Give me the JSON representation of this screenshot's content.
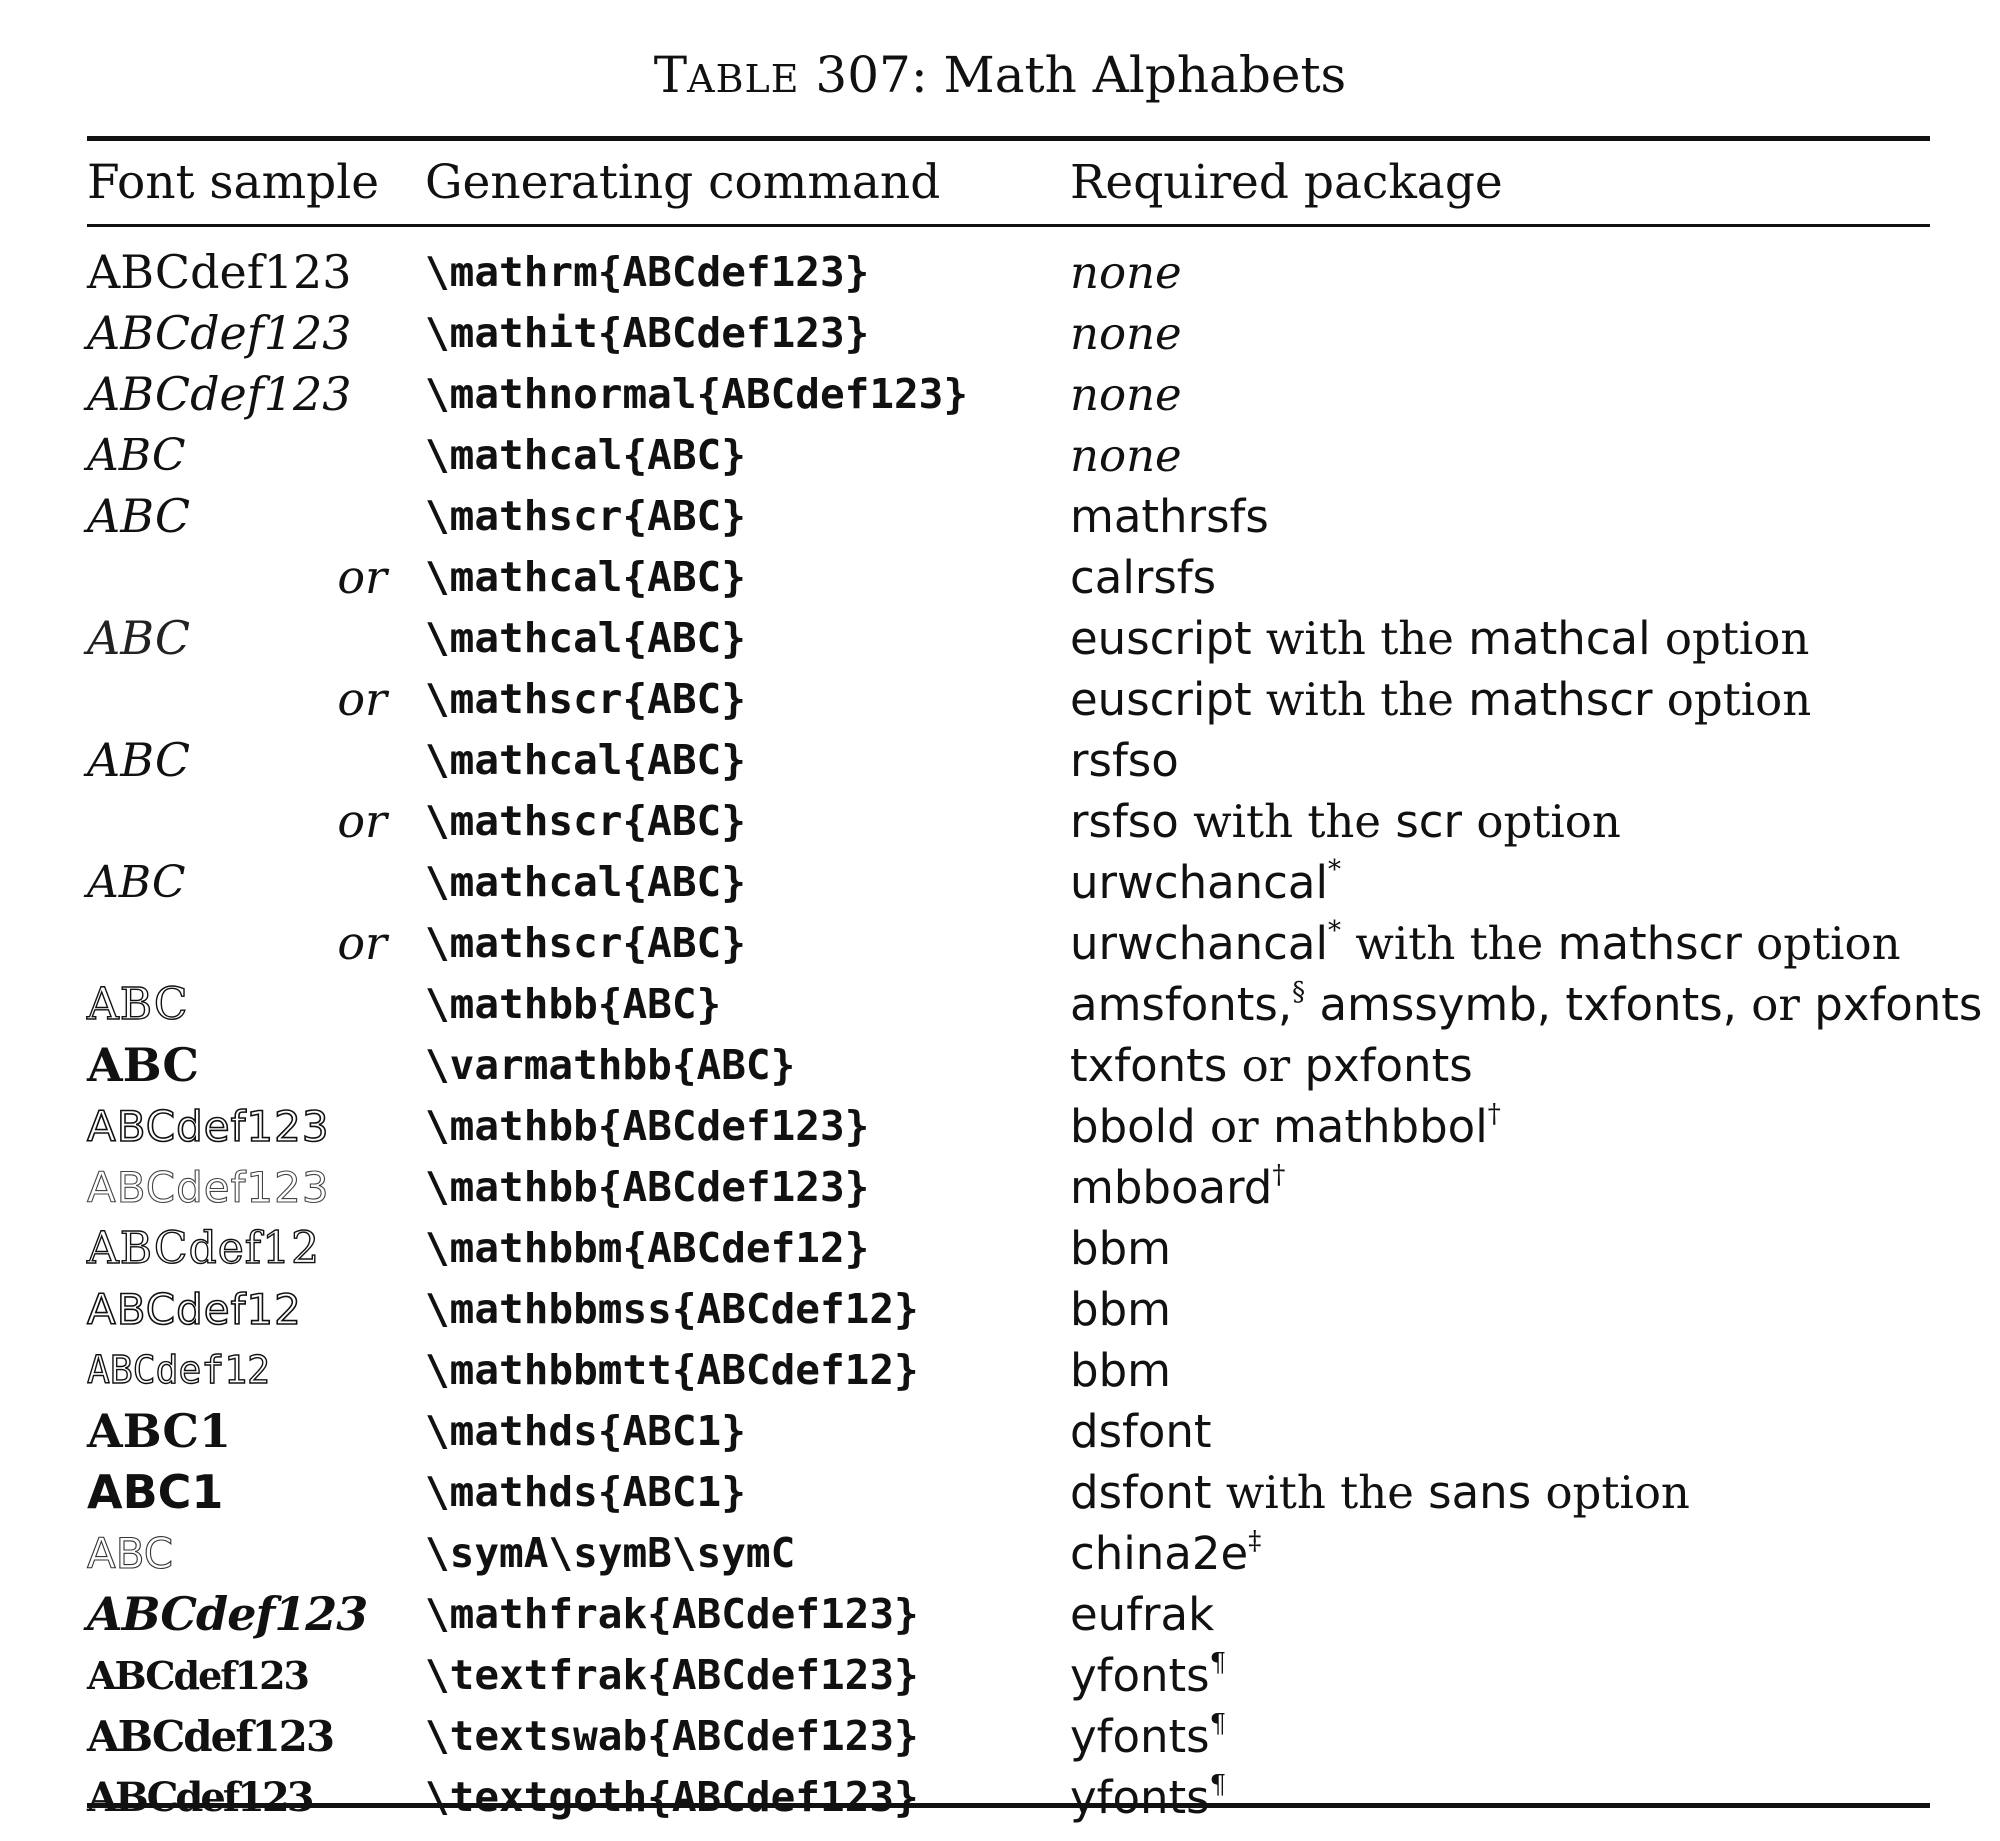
{
  "caption": {
    "prefix_big": "T",
    "prefix_small": "ABLE",
    "rest": " 307: Math Alphabets"
  },
  "headers": {
    "font_sample": "Font sample",
    "generating_command": "Generating command",
    "required_package": "Required package"
  },
  "rows": [
    {
      "sample": "ABCdef123",
      "command": "\\mathrm{ABCdef123}",
      "pkg": [
        {
          "t": "none",
          "s": "it"
        }
      ]
    },
    {
      "sample": "ABCdef123",
      "command": "\\mathit{ABCdef123}",
      "pkg": [
        {
          "t": "none",
          "s": "it"
        }
      ]
    },
    {
      "sample": "ABCdef123",
      "command": "\\mathnormal{ABCdef123}",
      "pkg": [
        {
          "t": "none",
          "s": "it"
        }
      ]
    },
    {
      "sample": "ABC",
      "command": "\\mathcal{ABC}",
      "pkg": [
        {
          "t": "none",
          "s": "it"
        }
      ]
    },
    {
      "sample": "ABC",
      "command": "\\mathscr{ABC}",
      "pkg": [
        {
          "t": "mathrsfs",
          "s": "sf"
        }
      ]
    },
    {
      "sample": "or",
      "command": "\\mathcal{ABC}",
      "pkg": [
        {
          "t": "calrsfs",
          "s": "sf"
        }
      ]
    },
    {
      "sample": "ABC",
      "command": "\\mathcal{ABC}",
      "pkg": [
        {
          "t": "euscript",
          "s": "sf"
        },
        {
          "t": " with the ",
          "s": "rm"
        },
        {
          "t": "mathcal",
          "s": "sf"
        },
        {
          "t": " option",
          "s": "rm"
        }
      ]
    },
    {
      "sample": "or",
      "command": "\\mathscr{ABC}",
      "pkg": [
        {
          "t": "euscript",
          "s": "sf"
        },
        {
          "t": " with the ",
          "s": "rm"
        },
        {
          "t": "mathscr",
          "s": "sf"
        },
        {
          "t": " option",
          "s": "rm"
        }
      ]
    },
    {
      "sample": "ABC",
      "command": "\\mathcal{ABC}",
      "pkg": [
        {
          "t": "rsfso",
          "s": "sf"
        }
      ]
    },
    {
      "sample": "or",
      "command": "\\mathscr{ABC}",
      "pkg": [
        {
          "t": "rsfso",
          "s": "sf"
        },
        {
          "t": " with the ",
          "s": "rm"
        },
        {
          "t": "scr",
          "s": "sf"
        },
        {
          "t": " option",
          "s": "rm"
        }
      ]
    },
    {
      "sample": "ABC",
      "command": "\\mathcal{ABC}",
      "pkg": [
        {
          "t": "urwchancal",
          "s": "sf"
        },
        {
          "t": "*",
          "s": "sup"
        }
      ]
    },
    {
      "sample": "or",
      "command": "\\mathscr{ABC}",
      "pkg": [
        {
          "t": "urwchancal",
          "s": "sf"
        },
        {
          "t": "*",
          "s": "sup"
        },
        {
          "t": " with the ",
          "s": "rm"
        },
        {
          "t": "mathscr",
          "s": "sf"
        },
        {
          "t": " option",
          "s": "rm"
        }
      ]
    },
    {
      "sample": "ABC",
      "command": "\\mathbb{ABC}",
      "pkg": [
        {
          "t": "amsfonts,",
          "s": "sf"
        },
        {
          "t": "§",
          "s": "sup"
        },
        {
          "t": " amssymb, txfonts, ",
          "s": "sf"
        },
        {
          "t": "or ",
          "s": "rm"
        },
        {
          "t": "pxfonts",
          "s": "sf"
        }
      ]
    },
    {
      "sample": "ABC",
      "command": "\\varmathbb{ABC}",
      "pkg": [
        {
          "t": "txfonts",
          "s": "sf"
        },
        {
          "t": " or ",
          "s": "rm"
        },
        {
          "t": "pxfonts",
          "s": "sf"
        }
      ]
    },
    {
      "sample": "ABCdef123",
      "command": "\\mathbb{ABCdef123}",
      "pkg": [
        {
          "t": "bbold",
          "s": "sf"
        },
        {
          "t": " or ",
          "s": "rm"
        },
        {
          "t": "mathbbol",
          "s": "sf"
        },
        {
          "t": "†",
          "s": "sup"
        }
      ]
    },
    {
      "sample": "ABCdef123",
      "command": "\\mathbb{ABCdef123}",
      "pkg": [
        {
          "t": "mbboard",
          "s": "sf"
        },
        {
          "t": "†",
          "s": "sup"
        }
      ]
    },
    {
      "sample": "ABCdef12",
      "command": "\\mathbbm{ABCdef12}",
      "pkg": [
        {
          "t": "bbm",
          "s": "sf"
        }
      ]
    },
    {
      "sample": "ABCdef12",
      "command": "\\mathbbmss{ABCdef12}",
      "pkg": [
        {
          "t": "bbm",
          "s": "sf"
        }
      ]
    },
    {
      "sample": "ABCdef12",
      "command": "\\mathbbmtt{ABCdef12}",
      "pkg": [
        {
          "t": "bbm",
          "s": "sf"
        }
      ]
    },
    {
      "sample": "ABC1",
      "command": "\\mathds{ABC1}",
      "pkg": [
        {
          "t": "dsfont",
          "s": "sf"
        }
      ]
    },
    {
      "sample": "ABC1",
      "command": "\\mathds{ABC1}",
      "pkg": [
        {
          "t": "dsfont",
          "s": "sf"
        },
        {
          "t": " with the ",
          "s": "rm"
        },
        {
          "t": "sans",
          "s": "sf"
        },
        {
          "t": " option",
          "s": "rm"
        }
      ]
    },
    {
      "sample": "ABC",
      "command": "\\symA\\symB\\symC",
      "pkg": [
        {
          "t": "china2e",
          "s": "sf"
        },
        {
          "t": "‡",
          "s": "sup"
        }
      ]
    },
    {
      "sample": "ABCdef123",
      "command": "\\mathfrak{ABCdef123}",
      "pkg": [
        {
          "t": "eufrak",
          "s": "sf"
        }
      ]
    },
    {
      "sample": "ABCdef123",
      "command": "\\textfrak{ABCdef123}",
      "pkg": [
        {
          "t": "yfonts",
          "s": "sf"
        },
        {
          "t": "¶",
          "s": "sup"
        }
      ]
    },
    {
      "sample": "ABCdef123",
      "command": "\\textswab{ABCdef123}",
      "pkg": [
        {
          "t": "yfonts",
          "s": "sf"
        },
        {
          "t": "¶",
          "s": "sup"
        }
      ]
    },
    {
      "sample": "ABCdef123",
      "command": "\\textgoth{ABCdef123}",
      "pkg": [
        {
          "t": "yfonts",
          "s": "sf"
        },
        {
          "t": "¶",
          "s": "sup"
        }
      ]
    }
  ]
}
